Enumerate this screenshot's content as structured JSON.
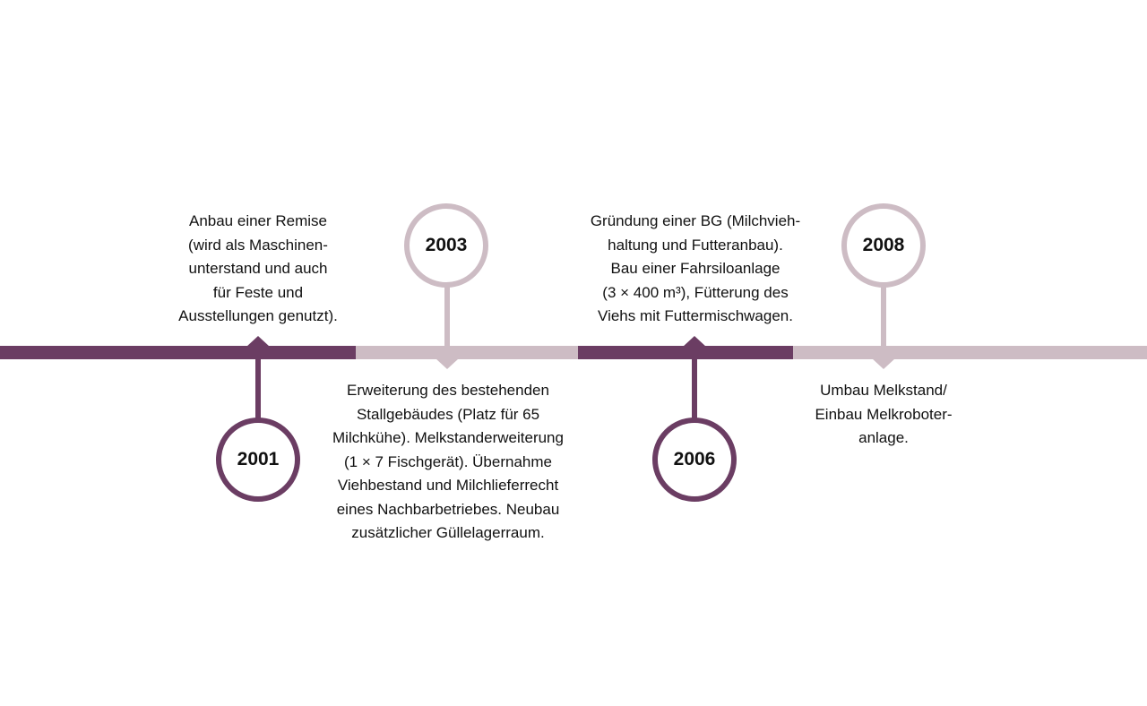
{
  "colors": {
    "dark": "#6b3d63",
    "light": "#cdbcc4"
  },
  "events": [
    {
      "year": "2001",
      "text": "Anbau einer Remise\n(wird als Maschinen-\nunterstand und auch\nfür Feste und\nAusstellungen genutzt)."
    },
    {
      "year": "2003",
      "text": "Erweiterung des bestehenden\nStallgebäudes (Platz für 65\nMilchkühe). Melkstanderweiterung\n(1 × 7 Fischgerät). Übernahme\nViehbestand und Milchlieferrecht\neines Nachbarbetriebes. Neubau\nzusätzlicher Güllelagerraum."
    },
    {
      "year": "2006",
      "text": "Gründung einer BG (Milchvieh-\nhaltung und Futteranbau).\nBau einer Fahrsiloanlage\n(3 × 400 m³), Fütterung des\nViehs mit Futtermischwagen."
    },
    {
      "year": "2008",
      "text": "Umbau Melkstand/\nEinbau Melkroboter-\nanlage."
    }
  ]
}
